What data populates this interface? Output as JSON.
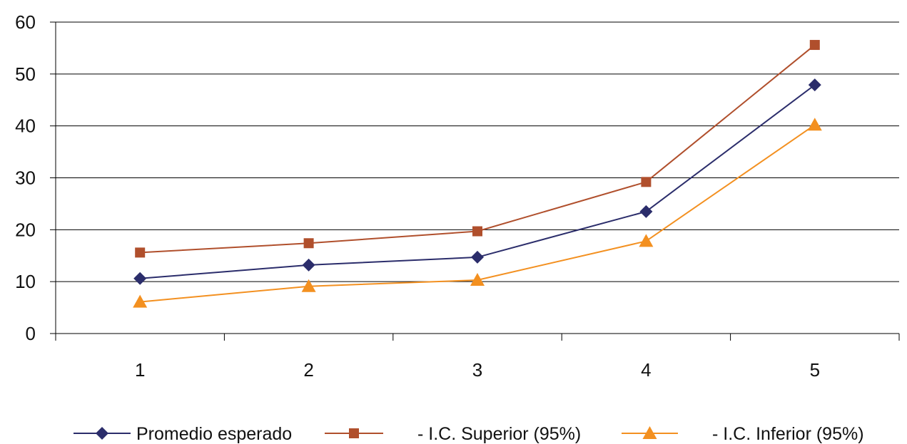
{
  "chart_data": {
    "type": "line",
    "title": "",
    "xlabel": "",
    "ylabel": "",
    "categories": [
      "1",
      "2",
      "3",
      "4",
      "5"
    ],
    "ylim": [
      0,
      60
    ],
    "yticks": [
      "0",
      "10",
      "20",
      "30",
      "40",
      "50",
      "60"
    ],
    "grid": true,
    "legend_position": "bottom",
    "series": [
      {
        "name": "Promedio esperado",
        "values": [
          10.6,
          13.2,
          14.7,
          23.5,
          47.9
        ],
        "color": "#2b2d6b",
        "marker": "diamond"
      },
      {
        "name": "- I.C. Superior (95%)",
        "values": [
          15.6,
          17.4,
          19.7,
          29.2,
          55.6
        ],
        "color": "#b04f2c",
        "marker": "square"
      },
      {
        "name": "- I.C. Inferior (95%)",
        "values": [
          6.1,
          9.1,
          10.3,
          17.8,
          40.2
        ],
        "color": "#f39020",
        "marker": "triangle"
      }
    ]
  }
}
